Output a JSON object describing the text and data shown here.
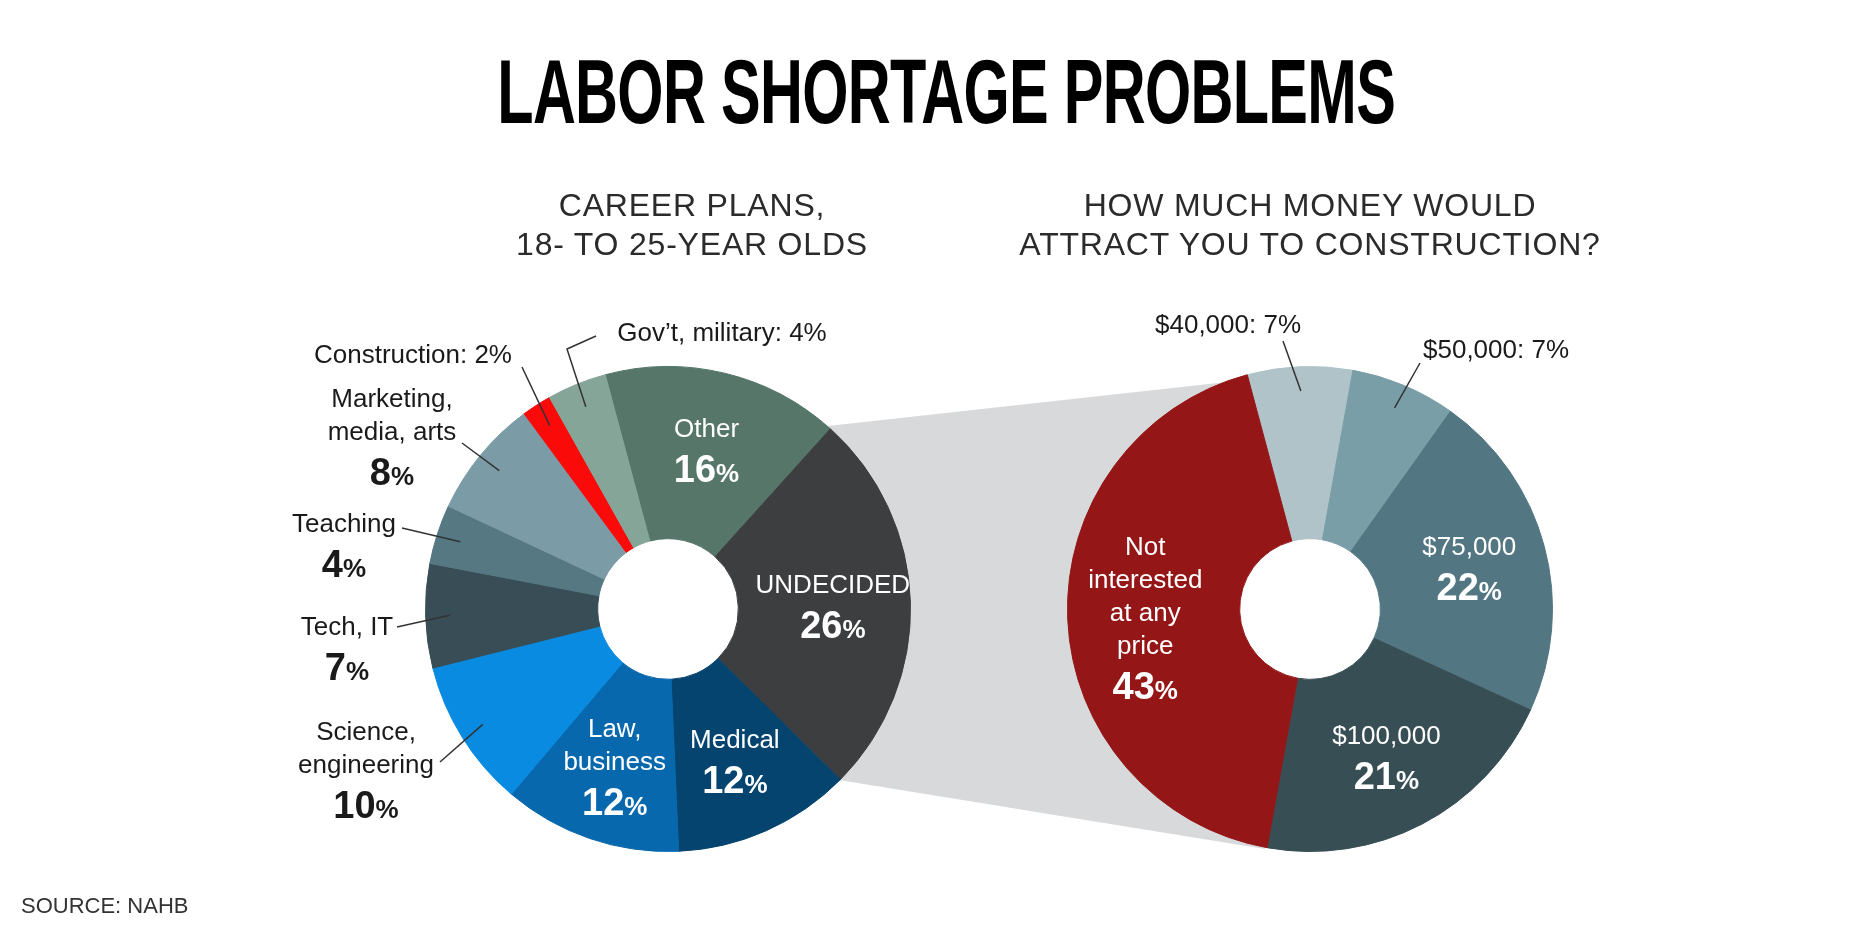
{
  "chart_data": [
    {
      "type": "other",
      "title": "LABOR SHORTAGE PROBLEMS",
      "annotations": [
        "SOURCE: NAHB"
      ]
    },
    {
      "type": "donut",
      "title": "CAREER PLANS,\n18- TO 25-YEAR OLDS",
      "categories": [
        "Other",
        "UNDECIDED",
        "Medical",
        "Law, business",
        "Science, engineering",
        "Tech, IT",
        "Teaching",
        "Marketing, media, arts",
        "Construction",
        "Gov’t, military"
      ],
      "values": [
        16,
        26,
        12,
        12,
        10,
        7,
        4,
        8,
        2,
        4
      ],
      "colors": [
        "#56766a",
        "#3d3e40",
        "#05446f",
        "#0868ad",
        "#0a8be2",
        "#384d55",
        "#557883",
        "#7b9ca6",
        "#fb0a0a",
        "#86a599"
      ],
      "value_labels": [
        "16%",
        "26%",
        "12%",
        "12%",
        "10%",
        "7%",
        "4%",
        "8%",
        "2%",
        "4%"
      ]
    },
    {
      "type": "donut",
      "title": "HOW MUCH MONEY WOULD\nATTRACT YOU TO CONSTRUCTION?",
      "categories": [
        "$40,000",
        "$50,000",
        "$75,000",
        "$100,000",
        "Not interested at any price"
      ],
      "values": [
        7,
        7,
        22,
        21,
        43
      ],
      "colors": [
        "#afc3c9",
        "#799ea7",
        "#537782",
        "#384e55",
        "#951617"
      ],
      "value_labels": [
        "7%",
        "7%",
        "22%",
        "21%",
        "43%"
      ]
    }
  ]
}
